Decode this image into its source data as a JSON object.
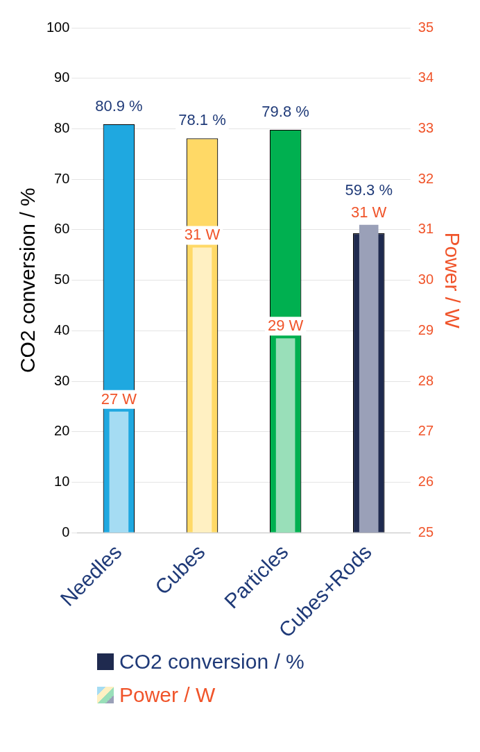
{
  "chart_data": {
    "type": "bar",
    "categories": [
      "Needles",
      "Cubes",
      "Particles",
      "Cubes+Rods"
    ],
    "ylabel": "CO2 conversion / %",
    "y2label": "Power / W",
    "ylim": [
      0,
      100
    ],
    "yticks": [
      0,
      10,
      20,
      30,
      40,
      50,
      60,
      70,
      80,
      90,
      100
    ],
    "y2lim": [
      25,
      35
    ],
    "y2ticks": [
      25,
      26,
      27,
      28,
      29,
      30,
      31,
      32,
      33,
      34,
      35
    ],
    "grid": "y",
    "legend": "bottom",
    "series": [
      {
        "name": "CO2 conversion / %",
        "color": "#1f2a4f",
        "colors": [
          "#1fa8e0",
          "#ffd966",
          "#00b050",
          "#1f2a4f"
        ],
        "values": [
          80.9,
          78.1,
          79.8,
          59.3
        ],
        "value_labels": [
          "80.9 %",
          "78.1 %",
          "79.8 %",
          "59.3 %"
        ]
      },
      {
        "name": "Power / W",
        "color": "#f0542a",
        "colors": [
          "#a5dcf3",
          "#fff0c2",
          "#99dfb9",
          "#9aa0b8"
        ],
        "axis": "y2",
        "values": [
          27.4,
          30.65,
          28.85,
          31.1
        ],
        "value_labels": [
          "27 W",
          "31 W",
          "29 W",
          "31 W"
        ]
      }
    ]
  }
}
